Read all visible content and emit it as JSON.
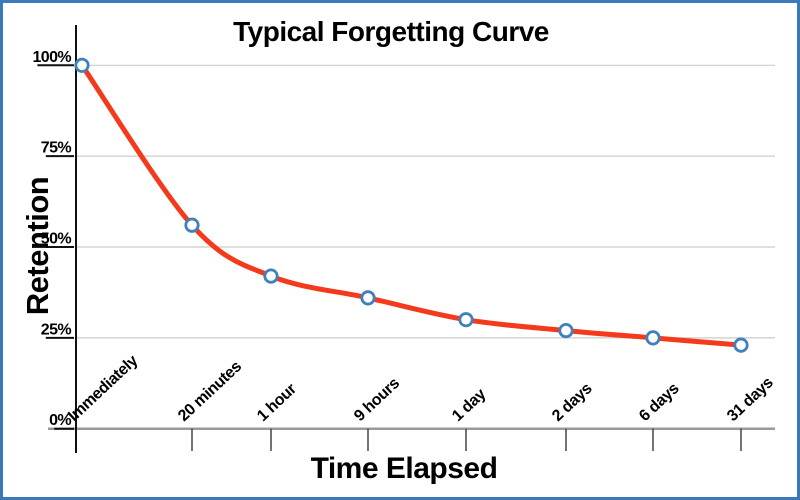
{
  "chart_data": {
    "type": "line",
    "title": "Typical Forgetting Curve",
    "xlabel": "Time Elapsed",
    "ylabel": "Retention",
    "categories": [
      "Immediately",
      "20 minutes",
      "1 hour",
      "9 hours",
      "1 day",
      "2 days",
      "6 days",
      "31 days"
    ],
    "series": [
      {
        "name": "Retention",
        "values": [
          100,
          56,
          42,
          36,
          30,
          27,
          25,
          23
        ]
      }
    ],
    "ylim": [
      0,
      100
    ],
    "yticks": [
      {
        "value": 0,
        "label": "0%"
      },
      {
        "value": 25,
        "label": "25%"
      },
      {
        "value": 50,
        "label": "50%"
      },
      {
        "value": 75,
        "label": "75%"
      },
      {
        "value": 100,
        "label": "100%"
      }
    ],
    "grid": "horizontal",
    "legend_position": "none",
    "marker_style": "open-circle",
    "colors": {
      "line": "#f43a1d",
      "marker_stroke": "#4080bd",
      "marker_fill": "#ffffff",
      "gridline": "#cccccc",
      "zero_line": "#999999",
      "axis": "#111111",
      "tick": "#444444",
      "label_underline": "#111111",
      "text": "#000000",
      "frame_border": "#3b79b8",
      "background": "#ffffff"
    }
  }
}
